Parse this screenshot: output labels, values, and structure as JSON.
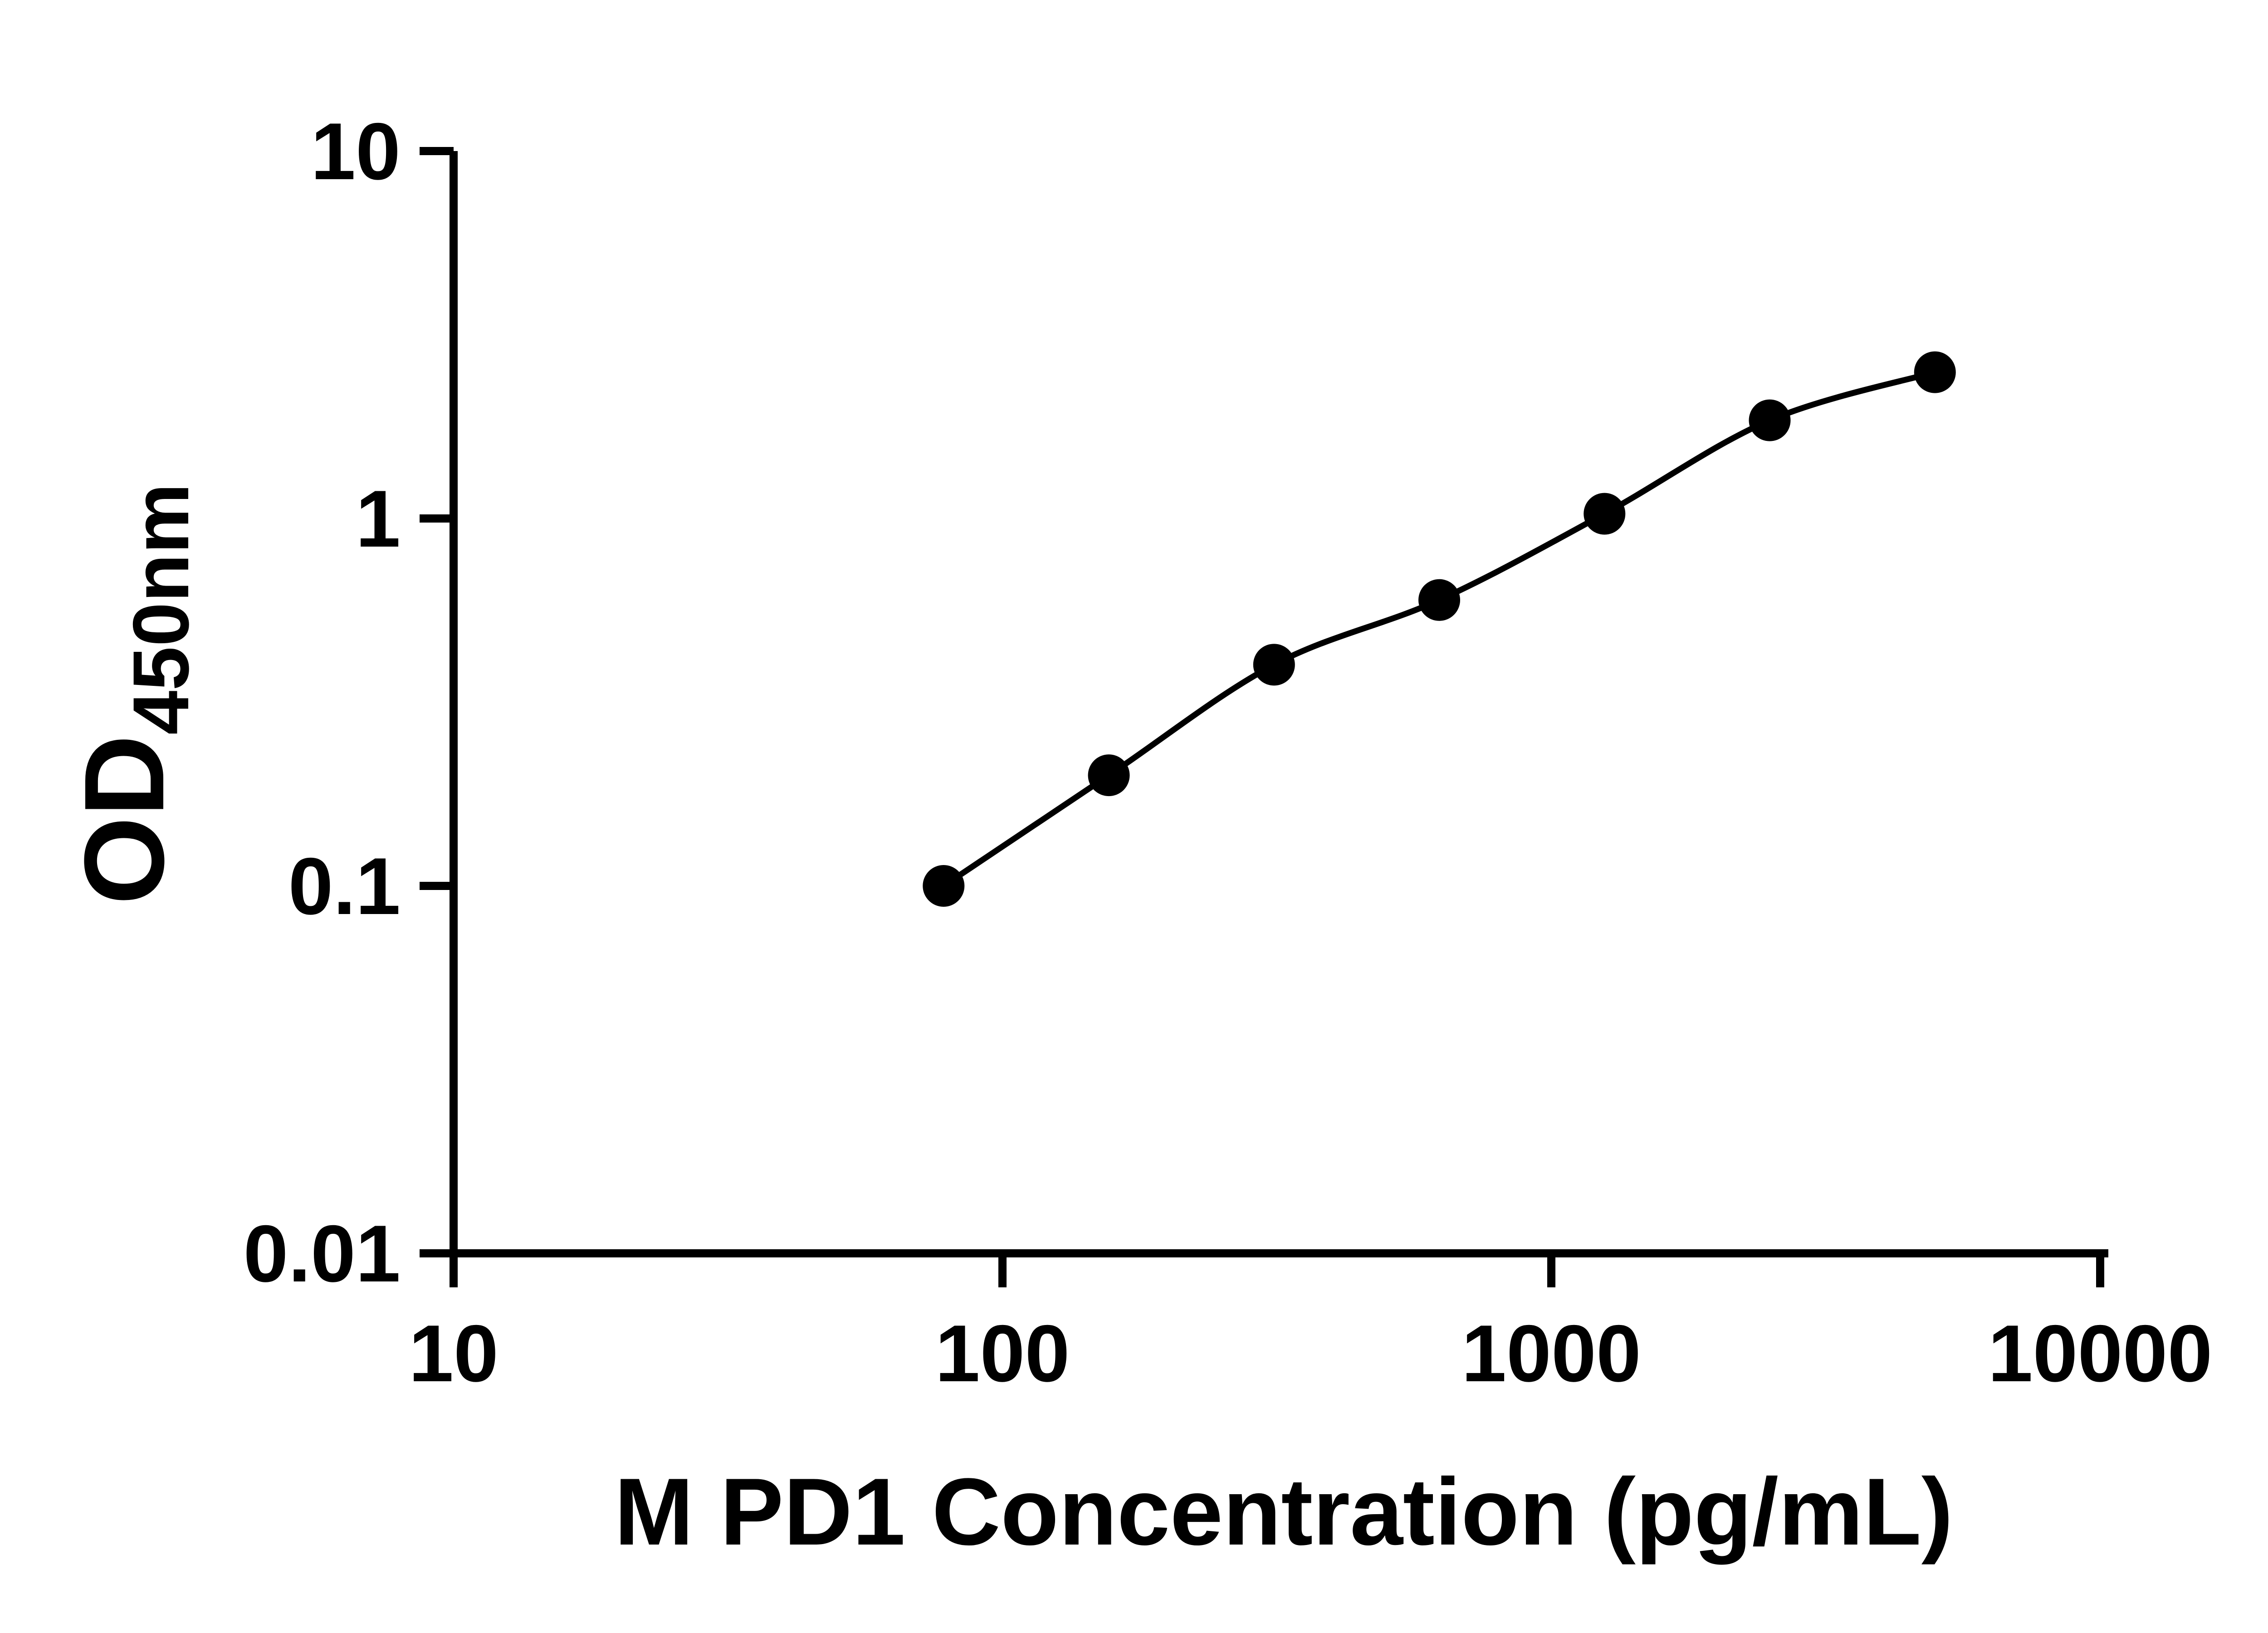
{
  "page": {
    "background_color": "#ffffff"
  },
  "chart_data": {
    "type": "scatter",
    "subtype": "log-log standard curve with smooth fit line",
    "title": "",
    "xlabel": "M PD1 Concentration (pg/mL)",
    "ylabel": "OD",
    "ylabel_subscript": "450nm",
    "xscale": "log",
    "yscale": "log",
    "xlim": [
      10,
      10000
    ],
    "ylim": [
      0.01,
      10
    ],
    "x_ticks": [
      10,
      100,
      1000,
      10000
    ],
    "y_ticks": [
      0.01,
      0.1,
      1,
      10
    ],
    "x_tick_labels": [
      "10",
      "100",
      "1000",
      "10000"
    ],
    "y_tick_labels": [
      "0.01",
      "0.1",
      "1",
      "10"
    ],
    "grid": false,
    "legend": false,
    "x": [
      78.125,
      156.25,
      312.5,
      625,
      1250,
      2500,
      5000
    ],
    "y": [
      0.1,
      0.2,
      0.4,
      0.6,
      1.03,
      1.85,
      2.5
    ],
    "marker": "circle",
    "marker_color": "#000000",
    "line_color": "#000000",
    "axis_color": "#000000"
  }
}
